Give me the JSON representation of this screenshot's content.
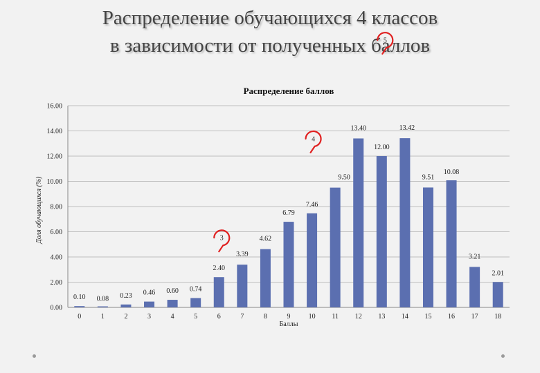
{
  "slide": {
    "title_line1": "Распределение обучающихся 4 классов",
    "title_line2": "в зависимости от полученных баллов"
  },
  "chart_data": {
    "type": "bar",
    "title": "Распределение баллов",
    "xlabel": "Баллы",
    "ylabel": "Доля обучающихся (%)",
    "categories": [
      "0",
      "1",
      "2",
      "3",
      "4",
      "5",
      "6",
      "7",
      "8",
      "9",
      "10",
      "11",
      "12",
      "13",
      "14",
      "15",
      "16",
      "17",
      "18"
    ],
    "values": [
      0.1,
      0.08,
      0.23,
      0.46,
      0.6,
      0.74,
      2.4,
      3.39,
      4.62,
      6.79,
      7.46,
      9.5,
      13.4,
      12.0,
      13.42,
      9.51,
      10.08,
      3.21,
      2.01
    ],
    "data_labels": [
      "0.10",
      "0.08",
      "0.23",
      "0.46",
      "0.60",
      "0.74",
      "2.40",
      "3.39",
      "4.62",
      "6.79",
      "7.46",
      "9.50",
      "13.40",
      "12.00",
      "13.42",
      "9.51",
      "10.08",
      "3.21",
      "2.01"
    ],
    "ylim": [
      0,
      16
    ],
    "yticks": [
      "0.00",
      "2.00",
      "4.00",
      "6.00",
      "8.00",
      "10.00",
      "12.00",
      "14.00",
      "16.00"
    ],
    "grid": true,
    "legend": "none",
    "bar_color": "#5b6fb0",
    "annotations": [
      {
        "text": "3",
        "category": "6",
        "color": "#e02020"
      },
      {
        "text": "4",
        "category": "10",
        "color": "#e02020"
      },
      {
        "text": "5",
        "category": "13",
        "color": "#e02020"
      }
    ]
  }
}
